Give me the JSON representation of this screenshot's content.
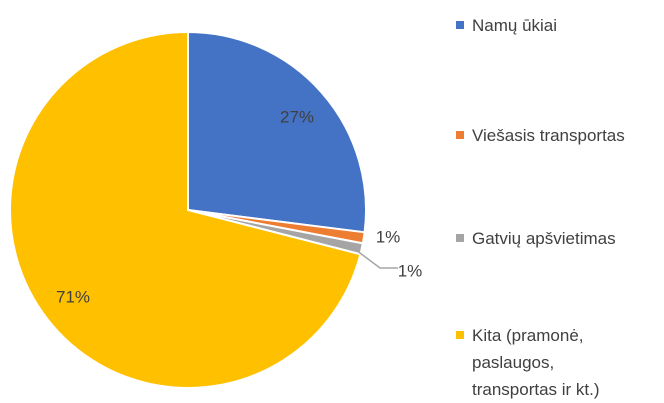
{
  "chart_data": {
    "type": "pie",
    "categories": [
      "Namų ūkiai",
      "Viešasis transportas",
      "Gatvių apšvietimas",
      "Kita (pramonė, paslaugos, transportas ir kt.)"
    ],
    "values": [
      27,
      1,
      1,
      71
    ],
    "value_labels": [
      "27%",
      "1%",
      "1%",
      "71%"
    ],
    "colors": [
      "#4472c4",
      "#ed7d31",
      "#a5a5a5",
      "#ffc000"
    ]
  }
}
